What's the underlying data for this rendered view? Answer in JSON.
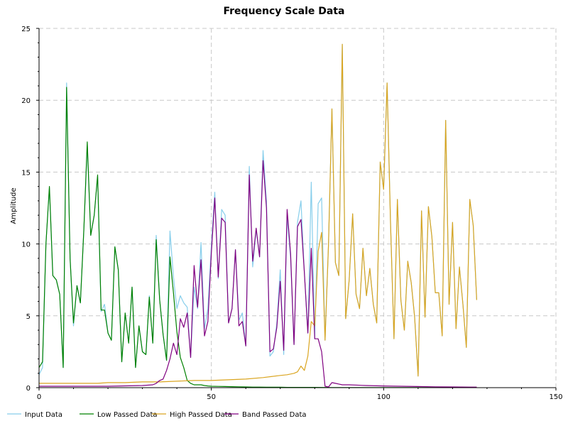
{
  "chart_data": {
    "type": "line",
    "title": "Frequency Scale Data",
    "xlabel": "",
    "ylabel": "Amplitude",
    "xlim": [
      0,
      150
    ],
    "ylim": [
      0,
      25
    ],
    "xticks": [
      0,
      50,
      100,
      150
    ],
    "yticks": [
      0,
      5,
      10,
      15,
      20,
      25
    ],
    "grid": true,
    "legend_position": "bottom",
    "series": [
      {
        "name": "Input Data",
        "color": "#87ceeb",
        "x": [
          0,
          1,
          2,
          3,
          4,
          5,
          6,
          7,
          8,
          9,
          10,
          11,
          12,
          13,
          14,
          15,
          16,
          17,
          18,
          19,
          20,
          21,
          22,
          23,
          24,
          25,
          26,
          27,
          28,
          29,
          30,
          31,
          32,
          33,
          34,
          35,
          36,
          37,
          38,
          39,
          40,
          41,
          42,
          43,
          44,
          45,
          46,
          47,
          48,
          49,
          50,
          51,
          52,
          53,
          54,
          55,
          56,
          57,
          58,
          59,
          60,
          61,
          62,
          63,
          64,
          65,
          66,
          67,
          68,
          69,
          70,
          71,
          72,
          73,
          74,
          75,
          76,
          77,
          78,
          79,
          80,
          81,
          82,
          83,
          84,
          85,
          86,
          87,
          88,
          89,
          90,
          91,
          92,
          93,
          94,
          95,
          96,
          97,
          98,
          99,
          100,
          101,
          102,
          103,
          104,
          105,
          106,
          107,
          108,
          109,
          110,
          111,
          112,
          113,
          114,
          115,
          116,
          117,
          118,
          119,
          120,
          121,
          122,
          123,
          124,
          125,
          126,
          127
        ],
        "y": [
          0.9,
          1.4,
          10.0,
          13.9,
          7.8,
          7.5,
          6.5,
          1.4,
          21.2,
          9.0,
          4.3,
          7.1,
          5.9,
          11.0,
          16.8,
          10.6,
          12.0,
          14.7,
          5.3,
          5.8,
          3.8,
          3.3,
          9.8,
          8.2,
          1.8,
          5.2,
          3.1,
          7.0,
          1.4,
          4.3,
          2.5,
          2.3,
          6.4,
          3.1,
          10.6,
          6.1,
          3.7,
          1.9,
          10.9,
          7.7,
          5.5,
          6.4,
          5.9,
          5.6,
          2.1,
          7.0,
          5.5,
          10.1,
          4.1,
          5.5,
          9.9,
          13.6,
          7.6,
          12.4,
          12.0,
          4.5,
          5.5,
          9.6,
          4.7,
          5.2,
          2.9,
          15.4,
          8.4,
          11.0,
          9.1,
          16.5,
          13.0,
          2.2,
          2.5,
          4.5,
          8.2,
          2.3,
          11.9,
          9.0,
          3.0,
          11.5,
          13.0,
          8.0,
          3.8,
          14.3,
          3.4,
          12.8,
          13.2,
          3.3,
          10.0,
          19.4,
          8.7,
          7.8,
          23.9,
          4.8,
          7.5,
          12.1,
          6.5,
          5.5,
          9.7,
          6.4,
          8.3,
          5.8,
          4.5,
          15.7,
          13.8,
          21.2,
          11.5,
          3.4,
          13.1,
          6.1,
          4.0,
          8.8,
          7.3,
          4.9,
          0.8,
          12.3,
          4.9,
          12.6,
          10.5,
          6.6,
          6.6,
          3.6,
          18.6,
          5.8,
          11.5,
          4.1,
          8.4,
          5.8,
          2.8,
          13.1,
          11.3,
          6.1
        ]
      },
      {
        "name": "Low Passed Data",
        "color": "#008000",
        "x": [
          0,
          1,
          2,
          3,
          4,
          5,
          6,
          7,
          8,
          9,
          10,
          11,
          12,
          13,
          14,
          15,
          16,
          17,
          18,
          19,
          20,
          21,
          22,
          23,
          24,
          25,
          26,
          27,
          28,
          29,
          30,
          31,
          32,
          33,
          34,
          35,
          36,
          37,
          38,
          39,
          40,
          41,
          42,
          43,
          44,
          45,
          46,
          47,
          48,
          49,
          50,
          52,
          54,
          56,
          58,
          60,
          62,
          64,
          66,
          68,
          70,
          72,
          74,
          76,
          78,
          80,
          85,
          90,
          95,
          100,
          105,
          110,
          115,
          120,
          125,
          127
        ],
        "y": [
          1.4,
          1.8,
          10.0,
          14.0,
          7.8,
          7.5,
          6.5,
          1.4,
          20.9,
          9.0,
          4.5,
          7.1,
          5.9,
          11.0,
          17.1,
          10.6,
          12.0,
          14.8,
          5.4,
          5.4,
          3.8,
          3.3,
          9.8,
          8.2,
          1.8,
          5.2,
          3.1,
          7.0,
          1.4,
          4.3,
          2.5,
          2.3,
          6.3,
          3.1,
          10.3,
          6.1,
          3.7,
          1.9,
          9.1,
          6.6,
          3.9,
          2.1,
          1.4,
          0.5,
          0.3,
          0.2,
          0.2,
          0.2,
          0.15,
          0.12,
          0.1,
          0.09,
          0.08,
          0.07,
          0.06,
          0.05,
          0.04,
          0.04,
          0.03,
          0.03,
          0.03,
          0.02,
          0.02,
          0.02,
          0.02,
          0.02,
          0.01,
          0.01,
          0.01,
          0.01,
          0.01,
          0.01,
          0.01,
          0.01,
          0.01,
          0.01
        ]
      },
      {
        "name": "High Passed Data",
        "color": "#daa520",
        "x": [
          0,
          10,
          17,
          20,
          25,
          30,
          35,
          40,
          45,
          50,
          55,
          60,
          65,
          70,
          72,
          74,
          75,
          76,
          77,
          78,
          79,
          80,
          81,
          82,
          83,
          84,
          85,
          86,
          87,
          88,
          89,
          90,
          91,
          92,
          93,
          94,
          95,
          96,
          97,
          98,
          99,
          100,
          101,
          102,
          103,
          104,
          105,
          106,
          107,
          108,
          109,
          110,
          111,
          112,
          113,
          114,
          115,
          116,
          117,
          118,
          119,
          120,
          121,
          122,
          123,
          124,
          125,
          126,
          127
        ],
        "y": [
          0.3,
          0.3,
          0.3,
          0.35,
          0.35,
          0.4,
          0.4,
          0.45,
          0.5,
          0.5,
          0.55,
          0.6,
          0.7,
          0.85,
          0.9,
          1.0,
          1.1,
          1.5,
          1.2,
          2.2,
          4.6,
          4.3,
          9.5,
          10.8,
          3.3,
          10.0,
          19.4,
          8.7,
          7.8,
          23.9,
          4.8,
          7.5,
          12.1,
          6.5,
          5.5,
          9.7,
          6.4,
          8.3,
          5.8,
          4.5,
          15.7,
          13.8,
          21.2,
          11.5,
          3.4,
          13.1,
          6.1,
          4.0,
          8.8,
          7.3,
          4.9,
          0.8,
          12.3,
          4.9,
          12.6,
          10.5,
          6.6,
          6.6,
          3.6,
          18.6,
          5.8,
          11.5,
          4.1,
          8.4,
          5.8,
          2.8,
          13.1,
          11.3,
          6.1
        ]
      },
      {
        "name": "Band Passed Data",
        "color": "#800080",
        "x": [
          0,
          10,
          20,
          30,
          33,
          34,
          35,
          36,
          37,
          38,
          39,
          40,
          41,
          42,
          43,
          44,
          45,
          46,
          47,
          48,
          49,
          50,
          51,
          52,
          53,
          54,
          55,
          56,
          57,
          58,
          59,
          60,
          61,
          62,
          63,
          64,
          65,
          66,
          67,
          68,
          69,
          70,
          71,
          72,
          73,
          74,
          75,
          76,
          77,
          78,
          79,
          80,
          81,
          82,
          83,
          84,
          85,
          86,
          87,
          88,
          89,
          90,
          95,
          100,
          105,
          110,
          115,
          120,
          125,
          127
        ],
        "y": [
          0.1,
          0.1,
          0.1,
          0.15,
          0.2,
          0.3,
          0.5,
          0.6,
          1.2,
          2.0,
          3.1,
          2.3,
          4.8,
          4.2,
          5.2,
          2.1,
          8.5,
          5.6,
          8.9,
          3.6,
          4.6,
          9.4,
          13.2,
          7.7,
          11.8,
          11.5,
          4.5,
          5.5,
          9.6,
          4.3,
          4.6,
          2.9,
          14.8,
          8.8,
          11.1,
          9.1,
          15.8,
          12.5,
          2.5,
          2.7,
          4.2,
          7.4,
          2.6,
          12.4,
          9.3,
          3.0,
          11.2,
          11.7,
          8.0,
          3.8,
          9.7,
          3.4,
          3.4,
          2.5,
          0.1,
          0.05,
          0.35,
          0.3,
          0.25,
          0.2,
          0.2,
          0.2,
          0.15,
          0.12,
          0.1,
          0.08,
          0.06,
          0.05,
          0.04,
          0.04
        ]
      }
    ]
  }
}
